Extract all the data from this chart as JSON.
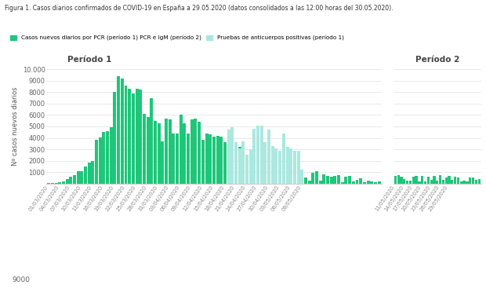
{
  "title": "Figura 1. Casos diarios confirmados de COVID-19 en España a 29.05.2020 (datos consolidados a las 12:00 horas del 30.05.2020).",
  "legend1": "Casos nuevos diarios por PCR (período 1) PCR e IgM (período 2)",
  "legend2": "Pruebas de anticuerpos positivas (período 1)",
  "ylabel": "Nº casos nuevos diarios",
  "periodo1_label": "Período 1",
  "periodo2_label": "Período 2",
  "footer_text": "9000",
  "background_color": "#ffffff",
  "bar_color_green": "#1ec67a",
  "bar_color_lightblue": "#aae8e0",
  "p1_tick_labels": [
    "01/03/2020",
    "04/03/2020",
    "07/03/2020",
    "10/03/2020",
    "13/03/2020",
    "16/03/2020",
    "19/03/2020",
    "22/03/2020",
    "25/03/2020",
    "28/03/2020",
    "31/03/2020",
    "03/04/2020",
    "06/04/2020",
    "09/04/2020",
    "12/04/2020",
    "15/04/2020",
    "18/04/2020",
    "21/04/2020",
    "24/04/2020",
    "27/04/2020",
    "30/04/2020",
    "03/05/2020",
    "06/05/2020",
    "09/05/2020"
  ],
  "p2_tick_labels": [
    "11/05/2020",
    "14/05/2020",
    "17/05/2020",
    "20/05/2020",
    "23/05/2020",
    "26/05/2020",
    "29/05/2020"
  ],
  "p1_green": [
    20,
    40,
    80,
    130,
    200,
    370,
    580,
    750,
    1050,
    1100,
    1500,
    1850,
    1950,
    3800,
    4050,
    4500,
    4600,
    4900,
    8000,
    9400,
    9200,
    8600,
    8300,
    7900,
    8300,
    8200,
    6100,
    5800,
    7500,
    5500,
    5300,
    3700,
    5700,
    5600,
    4400,
    4400,
    6000,
    5300,
    4400,
    5600,
    5700,
    5400,
    3800,
    4400,
    4300,
    4100,
    4200,
    4100,
    3600,
    3000,
    3100,
    2900,
    3200,
    2500,
    2400,
    2300,
    4350,
    4450,
    4150,
    2600,
    2350,
    2400,
    2200,
    1700,
    1600,
    1500,
    1600,
    1300,
    900,
    1000,
    550,
    260,
    950,
    1100,
    250,
    800,
    700,
    600,
    700,
    750,
    100,
    600,
    700,
    200,
    300,
    450,
    100,
    250,
    200,
    120,
    200
  ],
  "p1_lightblue": [
    0,
    0,
    0,
    0,
    0,
    0,
    0,
    0,
    0,
    0,
    0,
    0,
    0,
    0,
    0,
    0,
    0,
    0,
    0,
    0,
    0,
    0,
    0,
    0,
    0,
    0,
    0,
    0,
    0,
    0,
    0,
    0,
    0,
    0,
    0,
    0,
    0,
    0,
    0,
    0,
    0,
    0,
    0,
    0,
    0,
    0,
    0,
    0,
    0,
    4700,
    4900,
    3600,
    3100,
    3700,
    2500,
    3000,
    4800,
    5100,
    5100,
    3600,
    4700,
    3300,
    3100,
    2900,
    4400,
    3200,
    3100,
    2900,
    2900,
    1200,
    0,
    0,
    0,
    0,
    0,
    0,
    0,
    0,
    0,
    0,
    0,
    0,
    0,
    0,
    0,
    0,
    0,
    0,
    0,
    0,
    0
  ],
  "p2_green": [
    700,
    750,
    600,
    380,
    220,
    250,
    600,
    650,
    200,
    700,
    150,
    600,
    300,
    680,
    250,
    720,
    300,
    500,
    700,
    300,
    600,
    500,
    200,
    280,
    150,
    500,
    550,
    320,
    400
  ],
  "ylim": [
    0,
    10000
  ],
  "yticks": [
    0,
    1000,
    2000,
    3000,
    4000,
    5000,
    6000,
    7000,
    8000,
    9000,
    10000
  ],
  "ytick_labels": [
    "",
    "1000",
    "2000",
    "3000",
    "4000",
    "5000",
    "6000",
    "7000",
    "8000",
    "9000",
    "10.000"
  ]
}
